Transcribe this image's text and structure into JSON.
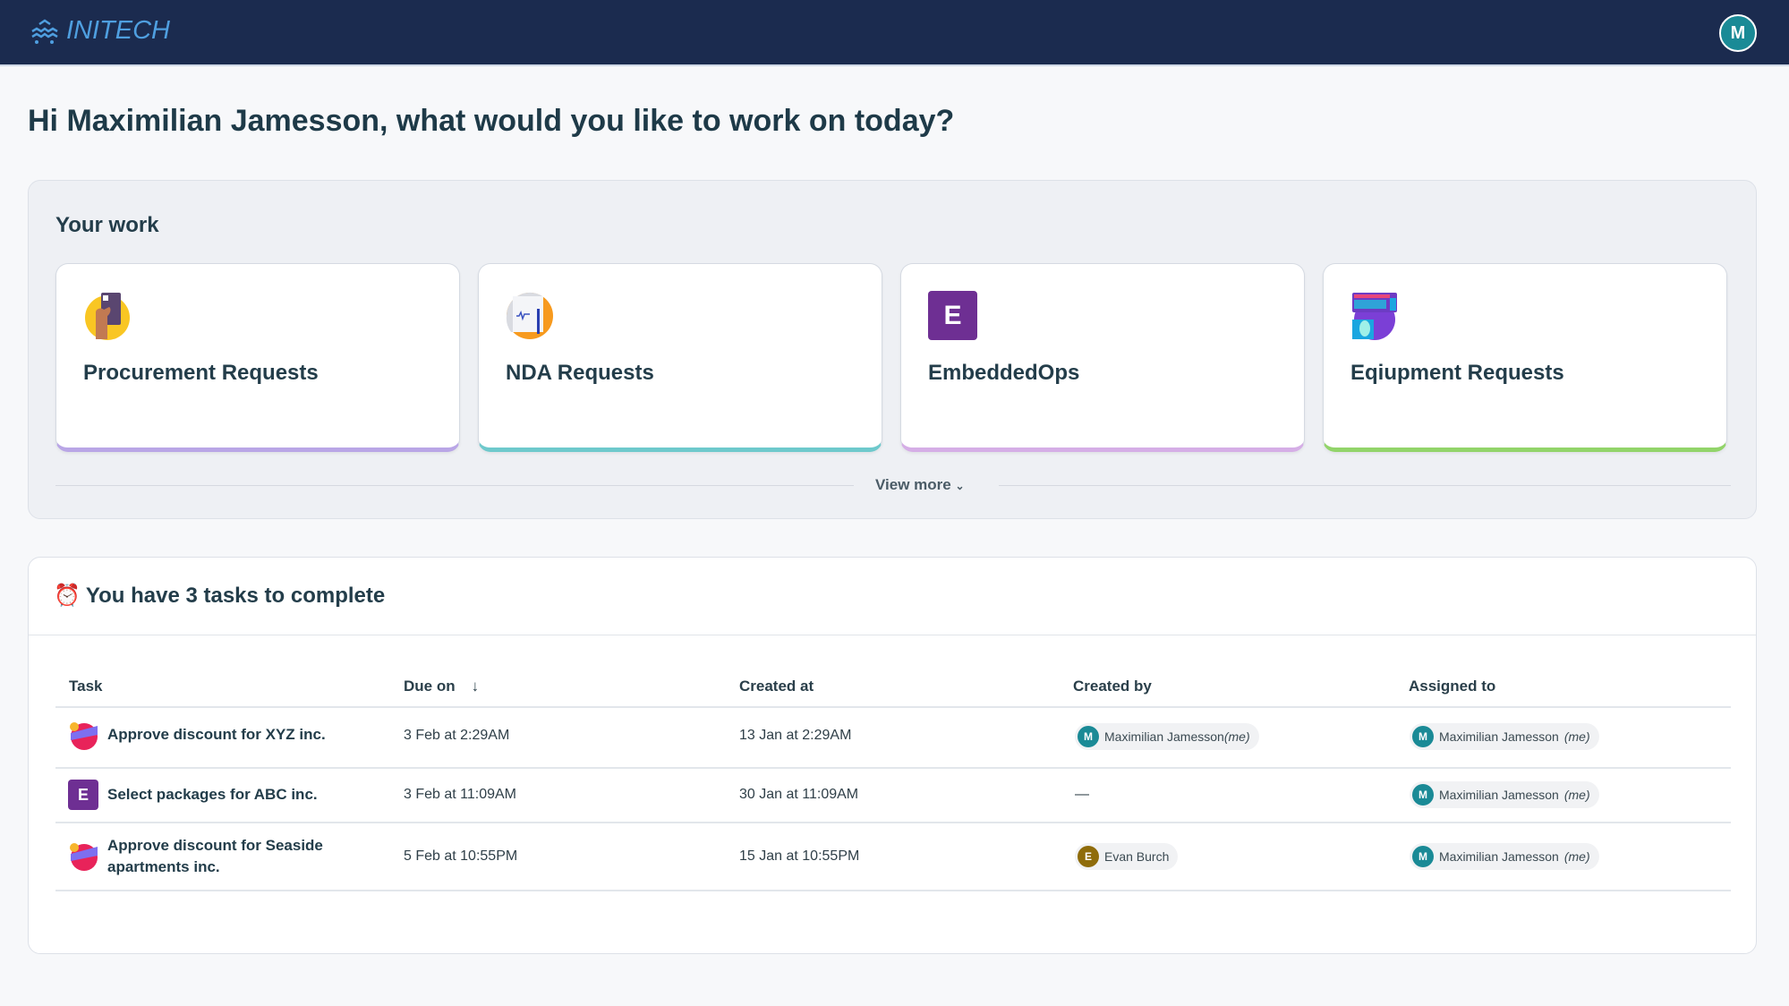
{
  "header": {
    "brand": "INITECH",
    "user_initial": "M"
  },
  "greeting": "Hi Maximilian Jamesson, what would you like to work on today?",
  "your_work": {
    "title": "Your work",
    "cards": [
      {
        "label": "Procurement Requests",
        "icon": "credit-card-hand-icon",
        "accent": "#b9a6e6"
      },
      {
        "label": "NDA Requests",
        "icon": "signed-document-icon",
        "accent": "#6ec9cc"
      },
      {
        "label": "EmbeddedOps",
        "icon": "E",
        "accent": "#d5aee6"
      },
      {
        "label": "Eqiupment Requests",
        "icon": "keyboard-mouse-icon",
        "accent": "#92d46a"
      }
    ],
    "view_more": "View more"
  },
  "tasks": {
    "title": "You have 3 tasks to complete",
    "columns": [
      "Task",
      "Due on",
      "Created at",
      "Created by",
      "Assigned to"
    ],
    "rows": [
      {
        "task": "Approve discount for XYZ inc.",
        "icon": "special-offer-icon",
        "due": "3 Feb at 2:29AM",
        "created": "13 Jan at 2:29AM",
        "created_by": {
          "initial": "M",
          "name": "Maximilian Jamesson",
          "me": "(me)",
          "color": "#1a8a96"
        },
        "assigned": {
          "initial": "M",
          "name": "Maximilian Jamesson",
          "me": "(me)"
        }
      },
      {
        "task": "Select packages for ABC inc.",
        "icon": "E",
        "due": "3 Feb at 11:09AM",
        "created": "30 Jan at 11:09AM",
        "created_by": {
          "empty": "—"
        },
        "assigned": {
          "initial": "M",
          "name": "Maximilian Jamesson",
          "me": "(me)"
        }
      },
      {
        "task": "Approve discount for Seaside apartments inc.",
        "icon": "special-offer-icon",
        "due": "5 Feb at 10:55PM",
        "created": "15 Jan at 10:55PM",
        "created_by": {
          "initial": "E",
          "name": "Evan Burch",
          "color": "#8f6c0a"
        },
        "assigned": {
          "initial": "M",
          "name": "Maximilian Jamesson",
          "me": "(me)"
        }
      }
    ]
  }
}
